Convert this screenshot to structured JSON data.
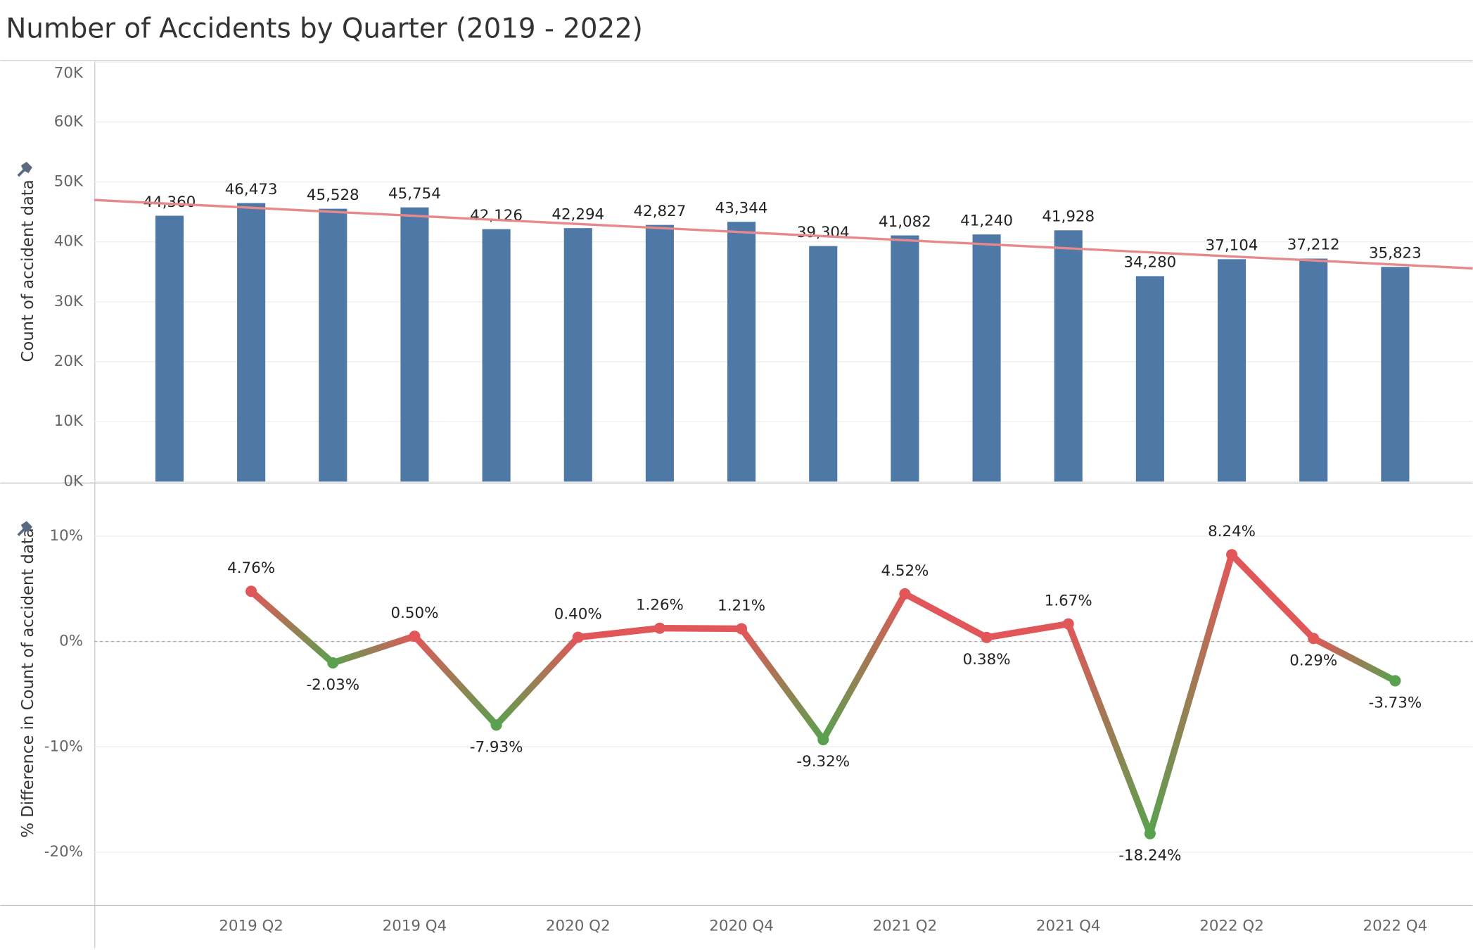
{
  "chart_data": [
    {
      "type": "bar",
      "title": "Number of Accidents by Quarter (2019 - 2022)",
      "y_label": "Count of accident data",
      "categories": [
        null,
        "2019 Q2",
        null,
        "2019 Q4",
        null,
        "2020 Q2",
        null,
        "2020 Q4",
        null,
        "2021 Q2",
        null,
        "2021 Q4",
        null,
        "2022 Q2",
        null,
        "2022 Q4"
      ],
      "values": [
        44360,
        46473,
        45528,
        45754,
        42126,
        42294,
        42827,
        43344,
        39304,
        41082,
        41240,
        41928,
        34280,
        37104,
        37212,
        35823
      ],
      "value_labels": [
        "44,360",
        "46,473",
        "45,528",
        "45,754",
        "42,126",
        "42,294",
        "42,827",
        "43,344",
        "39,304",
        "41,082",
        "41,240",
        "41,928",
        "34,280",
        "37,104",
        "37,212",
        "35,823"
      ],
      "color": "#4e79a7",
      "trend_line": {
        "color": "#e8888a"
      },
      "ylim": [
        0,
        70000
      ],
      "yticks": [
        {
          "value": 0,
          "label": "0K"
        },
        {
          "value": 10000,
          "label": "10K"
        },
        {
          "value": 20000,
          "label": "20K"
        },
        {
          "value": 30000,
          "label": "30K"
        },
        {
          "value": 40000,
          "label": "40K"
        },
        {
          "value": 50000,
          "label": "50K"
        },
        {
          "value": 60000,
          "label": "60K"
        },
        {
          "value": 70000,
          "label": "70K"
        }
      ],
      "grid": true
    },
    {
      "type": "line",
      "y_label": "% Difference in Count of accident data",
      "values": [
        null,
        4.76,
        -2.03,
        0.5,
        -7.93,
        0.4,
        1.26,
        1.21,
        -9.32,
        4.52,
        0.38,
        1.67,
        -18.24,
        8.24,
        0.29,
        -3.73
      ],
      "value_labels": [
        null,
        "4.76%",
        "-2.03%",
        "0.50%",
        "-7.93%",
        "0.40%",
        "1.26%",
        "1.21%",
        "-9.32%",
        "4.52%",
        "0.38%",
        "1.67%",
        "-18.24%",
        "8.24%",
        "0.29%",
        "-3.73%"
      ],
      "positive_color": "#e15759",
      "negative_color": "#59a14f",
      "ylim": [
        -25,
        15
      ],
      "yticks": [
        {
          "value": -20,
          "label": "-20%"
        },
        {
          "value": -10,
          "label": "-10%"
        },
        {
          "value": 0,
          "label": "0%"
        },
        {
          "value": 10,
          "label": "10%"
        }
      ],
      "grid": true
    }
  ]
}
